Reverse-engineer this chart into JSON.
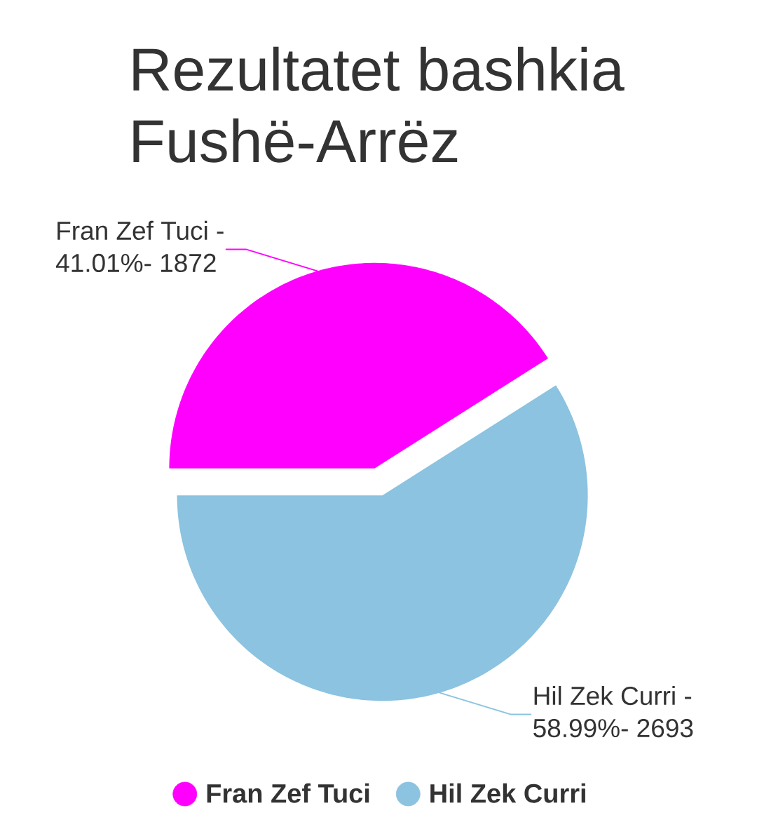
{
  "chart_data": {
    "type": "pie",
    "title": "Rezultatet bashkia Fushë-Arrëz",
    "categories": [
      "Fran Zef Tuci",
      "Hil Zek Curri"
    ],
    "values": [
      41.01,
      58.99
    ],
    "colors": [
      "#ff00ff",
      "#8bc3e0"
    ],
    "annotations": [
      "Fran Zef Tuci - 41.01%- 1872",
      "Hil Zek Curri - 58.99%- 2693"
    ],
    "legend": "bottom"
  }
}
